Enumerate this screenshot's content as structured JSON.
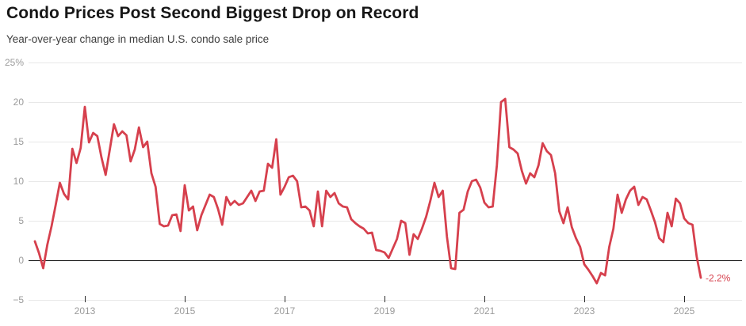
{
  "chart_data": {
    "type": "line",
    "title": "Condo Prices Post Second Biggest Drop on Record",
    "subtitle": "Year-over-year change in median U.S. condo sale price",
    "frequency": "monthly",
    "x_start": "2012-01",
    "x_end": "2025-05",
    "ylim": [
      -5,
      25
    ],
    "grid": true,
    "legend": "none",
    "y_ticks": [
      {
        "value": 25,
        "label": "25%"
      },
      {
        "value": 20,
        "label": "20"
      },
      {
        "value": 15,
        "label": "15"
      },
      {
        "value": 10,
        "label": "10"
      },
      {
        "value": 5,
        "label": "5"
      },
      {
        "value": 0,
        "label": "0"
      },
      {
        "value": -5,
        "label": "−5"
      }
    ],
    "x_ticks": [
      {
        "label": "2013"
      },
      {
        "label": "2015"
      },
      {
        "label": "2017"
      },
      {
        "label": "2019"
      },
      {
        "label": "2021"
      },
      {
        "label": "2023"
      },
      {
        "label": "2025"
      }
    ],
    "series": [
      {
        "name": "Year-over-year change in median U.S. condo sale price (%)",
        "values": [
          2.4,
          0.9,
          -1.0,
          2.0,
          4.3,
          7.0,
          9.8,
          8.4,
          7.7,
          14.1,
          12.3,
          14.2,
          19.4,
          14.9,
          16.1,
          15.7,
          13.0,
          10.8,
          14.0,
          17.2,
          15.7,
          16.3,
          15.8,
          12.5,
          14.0,
          16.8,
          14.3,
          15.0,
          11.0,
          9.3,
          4.6,
          4.3,
          4.4,
          5.7,
          5.8,
          3.7,
          9.5,
          6.3,
          6.8,
          3.8,
          5.7,
          7.0,
          8.3,
          8.0,
          6.5,
          4.5,
          8.0,
          7.0,
          7.5,
          7.0,
          7.2,
          8.0,
          8.8,
          7.5,
          8.7,
          8.8,
          12.2,
          11.7,
          15.3,
          8.3,
          9.3,
          10.5,
          10.7,
          10.0,
          6.7,
          6.8,
          6.3,
          4.3,
          8.7,
          4.3,
          8.8,
          8.0,
          8.5,
          7.2,
          6.8,
          6.7,
          5.2,
          4.7,
          4.3,
          4.0,
          3.4,
          3.5,
          1.3,
          1.2,
          1.0,
          0.3,
          1.5,
          2.7,
          5.0,
          4.7,
          0.7,
          3.3,
          2.7,
          4.0,
          5.5,
          7.5,
          9.8,
          8.0,
          8.8,
          3.0,
          -1.0,
          -1.1,
          6.0,
          6.4,
          8.7,
          10.0,
          10.2,
          9.2,
          7.3,
          6.7,
          6.8,
          12.0,
          20.0,
          20.4,
          14.3,
          14.0,
          13.5,
          11.3,
          9.7,
          11.0,
          10.5,
          12.0,
          14.8,
          13.8,
          13.3,
          11.0,
          6.2,
          4.7,
          6.7,
          4.2,
          2.8,
          1.7,
          -0.5,
          -1.2,
          -2.0,
          -2.9,
          -1.6,
          -1.9,
          1.7,
          4.0,
          8.3,
          6.0,
          7.7,
          8.8,
          9.3,
          7.0,
          8.0,
          7.7,
          6.3,
          4.8,
          2.8,
          2.3,
          6.0,
          4.3,
          7.8,
          7.2,
          5.3,
          4.7,
          4.5,
          0.5,
          -2.2
        ]
      }
    ],
    "last_point_label": "-2.2%",
    "colors": {
      "line": "#d6404d",
      "grid": "#e8e8e8",
      "zero_line": "#000000",
      "axis_text": "#9b9b9b",
      "tick_mark": "#2b2b2b",
      "title": "#161616",
      "subtitle": "#3d3d3d",
      "annotation": "#d6404d"
    }
  }
}
